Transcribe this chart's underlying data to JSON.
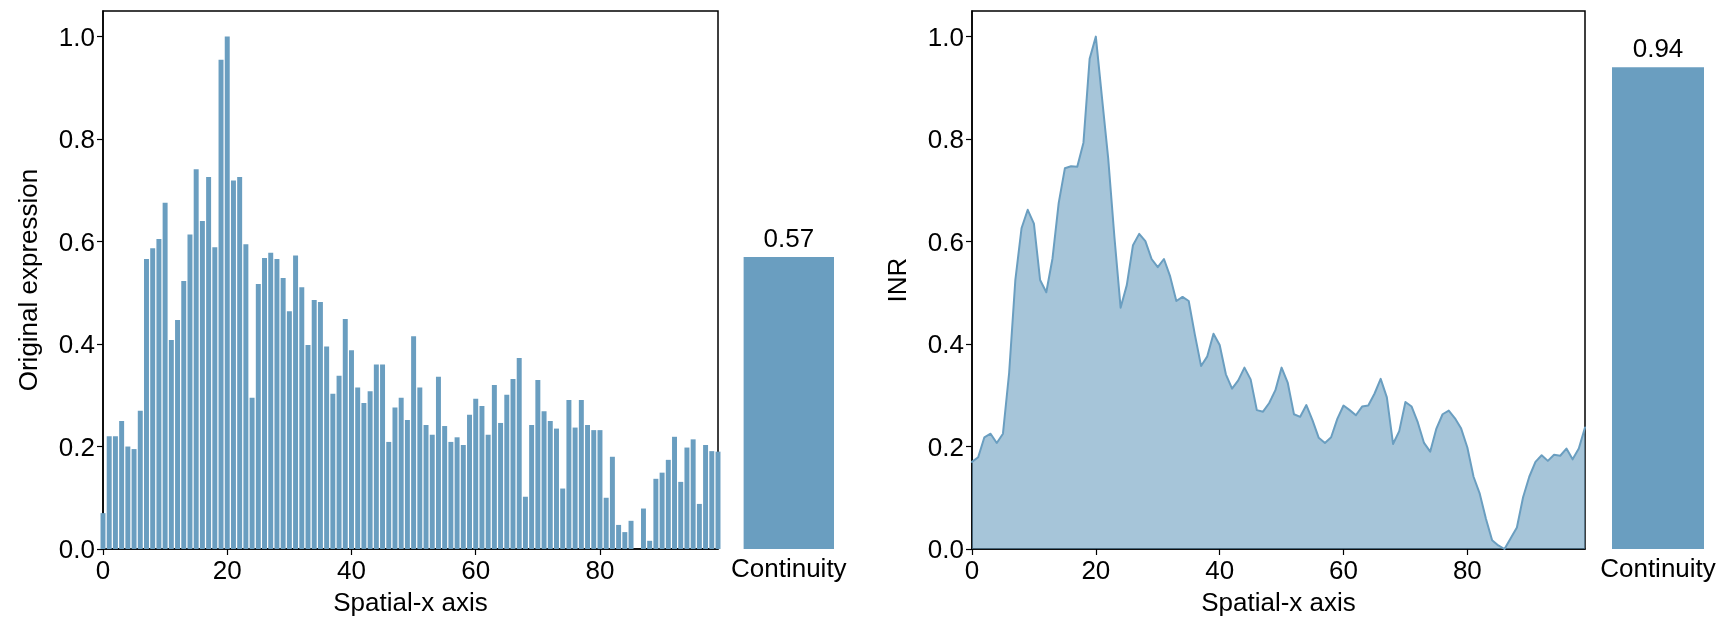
{
  "chart_data": [
    {
      "type": "bar",
      "xlabel": "Spatial-x axis",
      "ylabel": "Original expression",
      "color": "#6a9ec0",
      "x": [
        0,
        1,
        2,
        3,
        4,
        5,
        6,
        7,
        8,
        9,
        10,
        11,
        12,
        13,
        14,
        15,
        16,
        17,
        18,
        19,
        20,
        21,
        22,
        23,
        24,
        25,
        26,
        27,
        28,
        29,
        30,
        31,
        32,
        33,
        34,
        35,
        36,
        37,
        38,
        39,
        40,
        41,
        42,
        43,
        44,
        45,
        46,
        47,
        48,
        49,
        50,
        51,
        52,
        53,
        54,
        55,
        56,
        57,
        58,
        59,
        60,
        61,
        62,
        63,
        64,
        65,
        66,
        67,
        68,
        69,
        70,
        71,
        72,
        73,
        74,
        75,
        76,
        77,
        78,
        79,
        80,
        81,
        82,
        83,
        84,
        85,
        86,
        87,
        88,
        89,
        90,
        91,
        92,
        93,
        94,
        95,
        96,
        97,
        98,
        99
      ],
      "values": [
        0.07,
        0.22,
        0.22,
        0.25,
        0.2,
        0.195,
        0.27,
        0.566,
        0.587,
        0.605,
        0.676,
        0.408,
        0.447,
        0.523,
        0.614,
        0.741,
        0.64,
        0.726,
        0.589,
        0.955,
        1.0,
        0.719,
        0.726,
        0.595,
        0.295,
        0.517,
        0.568,
        0.578,
        0.566,
        0.529,
        0.464,
        0.573,
        0.511,
        0.398,
        0.486,
        0.482,
        0.395,
        0.303,
        0.338,
        0.449,
        0.388,
        0.315,
        0.285,
        0.308,
        0.36,
        0.36,
        0.209,
        0.276,
        0.295,
        0.252,
        0.415,
        0.315,
        0.242,
        0.223,
        0.336,
        0.24,
        0.209,
        0.218,
        0.203,
        0.262,
        0.293,
        0.279,
        0.223,
        0.32,
        0.246,
        0.301,
        0.332,
        0.373,
        0.102,
        0.242,
        0.33,
        0.269,
        0.25,
        0.235,
        0.118,
        0.291,
        0.237,
        0.291,
        0.242,
        0.232,
        0.232,
        0.1,
        0.18,
        0.047,
        0.033,
        0.055,
        0,
        0.079,
        0.016,
        0.137,
        0.149,
        0.174,
        0.219,
        0.131,
        0.198,
        0.214,
        0.088,
        0.203,
        0.191,
        0.19
      ],
      "xlim": [
        0,
        99
      ],
      "xticks": [
        0,
        20,
        40,
        60,
        80
      ],
      "ylim": [
        0,
        1.05
      ],
      "yticks": [
        {
          "value": 0,
          "label": "0.0"
        },
        {
          "value": 0.2,
          "label": "0.2"
        },
        {
          "value": 0.4,
          "label": "0.4"
        },
        {
          "value": 0.6,
          "label": "0.6"
        },
        {
          "value": 0.8,
          "label": "0.8"
        },
        {
          "value": 1,
          "label": "1.0"
        }
      ]
    },
    {
      "type": "bar",
      "categories": [
        "Continuity"
      ],
      "values": [
        0.57
      ],
      "color": "#6a9ec0",
      "data_labels": true,
      "tick_labels": "x"
    },
    {
      "type": "area",
      "xlabel": "Spatial-x axis",
      "ylabel": "INR",
      "color": "#6a9ec0",
      "marker": "none",
      "x": [
        0,
        1,
        2,
        3,
        4,
        5,
        6,
        7,
        8,
        9,
        10,
        11,
        12,
        13,
        14,
        15,
        16,
        17,
        18,
        19,
        20,
        21,
        22,
        23,
        24,
        25,
        26,
        27,
        28,
        29,
        30,
        31,
        32,
        33,
        34,
        35,
        36,
        37,
        38,
        39,
        40,
        41,
        42,
        43,
        44,
        45,
        46,
        47,
        48,
        49,
        50,
        51,
        52,
        53,
        54,
        55,
        56,
        57,
        58,
        59,
        60,
        61,
        62,
        63,
        64,
        65,
        66,
        67,
        68,
        69,
        70,
        71,
        72,
        73,
        74,
        75,
        76,
        77,
        78,
        79,
        80,
        81,
        82,
        83,
        84,
        85,
        86,
        87,
        88,
        89,
        90,
        91,
        92,
        93,
        94,
        95,
        96,
        97,
        98,
        99
      ],
      "values": [
        0.17,
        0.179,
        0.218,
        0.225,
        0.207,
        0.225,
        0.344,
        0.525,
        0.626,
        0.662,
        0.635,
        0.525,
        0.501,
        0.567,
        0.675,
        0.743,
        0.747,
        0.746,
        0.793,
        0.957,
        1.0,
        0.88,
        0.762,
        0.609,
        0.471,
        0.515,
        0.593,
        0.615,
        0.601,
        0.566,
        0.55,
        0.566,
        0.532,
        0.484,
        0.492,
        0.484,
        0.418,
        0.357,
        0.376,
        0.42,
        0.398,
        0.341,
        0.313,
        0.329,
        0.354,
        0.331,
        0.271,
        0.268,
        0.285,
        0.31,
        0.354,
        0.324,
        0.263,
        0.258,
        0.281,
        0.251,
        0.217,
        0.207,
        0.218,
        0.254,
        0.28,
        0.271,
        0.261,
        0.278,
        0.28,
        0.303,
        0.332,
        0.296,
        0.205,
        0.23,
        0.287,
        0.278,
        0.247,
        0.207,
        0.19,
        0.235,
        0.263,
        0.27,
        0.255,
        0.235,
        0.198,
        0.141,
        0.108,
        0.059,
        0.017,
        0.007,
        0,
        0.021,
        0.042,
        0.101,
        0.141,
        0.17,
        0.183,
        0.172,
        0.184,
        0.182,
        0.196,
        0.175,
        0.196,
        0.237
      ],
      "xlim": [
        0,
        99
      ],
      "xticks": [
        0,
        20,
        40,
        60,
        80
      ],
      "ylim": [
        0,
        1.05
      ],
      "yticks": [
        {
          "value": 0,
          "label": "0.0"
        },
        {
          "value": 0.2,
          "label": "0.2"
        },
        {
          "value": 0.4,
          "label": "0.4"
        },
        {
          "value": 0.6,
          "label": "0.6"
        },
        {
          "value": 0.8,
          "label": "0.8"
        },
        {
          "value": 1,
          "label": "1.0"
        }
      ]
    },
    {
      "type": "bar",
      "categories": [
        "Continuity"
      ],
      "values": [
        0.94
      ],
      "color": "#6a9ec0",
      "data_labels": true,
      "tick_labels": "x"
    }
  ]
}
